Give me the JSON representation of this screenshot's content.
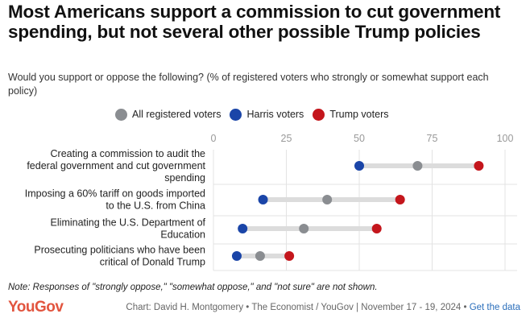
{
  "title": "Most Americans support a commission to cut government spending, but not several other possible Trump policies",
  "subtitle": "Would you support or oppose the following? (% of registered voters who strongly or somewhat support each policy)",
  "note": "Note: Responses of \"strongly oppose,\" \"somewhat oppose,\" and \"not sure\" are not shown.",
  "footer": {
    "logo": "YouGov",
    "credit": "Chart: David H. Montgomery • The Economist / YouGov | November 17 - 19, 2024 • ",
    "link_label": "Get the data"
  },
  "colors": {
    "all": "#8a8d91",
    "harris": "#1a45a8",
    "trump": "#c4161c",
    "range_bar": "#dcdcdc",
    "grid": "#e3e3e3",
    "logo": "#e2553f"
  },
  "chart_data": {
    "type": "dot",
    "xlim": [
      0,
      100
    ],
    "xticks": [
      "0",
      "25",
      "50",
      "75",
      "100"
    ],
    "legend": [
      {
        "key": "all",
        "label": "All registered voters"
      },
      {
        "key": "harris",
        "label": "Harris voters"
      },
      {
        "key": "trump",
        "label": "Trump voters"
      }
    ],
    "categories": [
      [
        "Creating a commission to audit the",
        "federal government and cut government",
        "spending"
      ],
      [
        "Imposing a 60% tariff on goods imported",
        "to the U.S. from China"
      ],
      [
        "Eliminating the U.S. Department of",
        "Education"
      ],
      [
        "Prosecuting politicians who have been",
        "critical of Donald Trump"
      ]
    ],
    "series": [
      {
        "key": "all",
        "name": "All registered voters",
        "values": [
          70,
          39,
          31,
          16
        ]
      },
      {
        "key": "harris",
        "name": "Harris voters",
        "values": [
          50,
          17,
          10,
          8
        ]
      },
      {
        "key": "trump",
        "name": "Trump voters",
        "values": [
          91,
          64,
          56,
          26
        ]
      }
    ]
  }
}
